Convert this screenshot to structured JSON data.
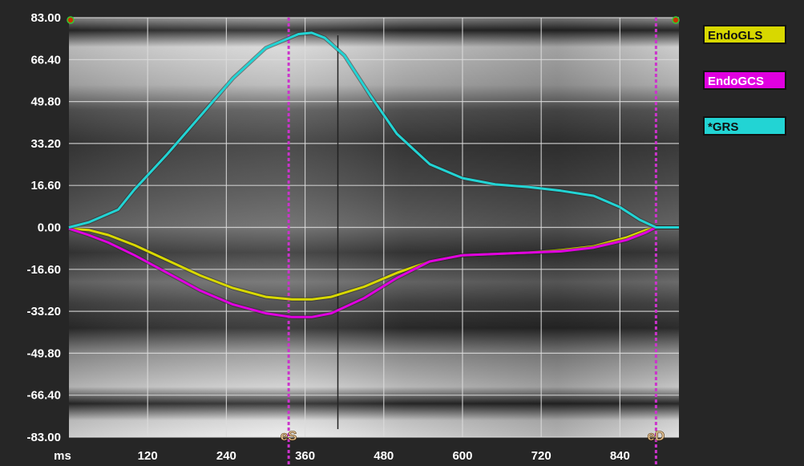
{
  "chart_data": {
    "type": "line",
    "xlabel": "ms",
    "x_ticks": [
      "120",
      "240",
      "360",
      "480",
      "600",
      "720",
      "840"
    ],
    "y_ticks": [
      "83.00",
      "66.40",
      "49.80",
      "33.20",
      "16.60",
      "0.00",
      "-16.60",
      "-33.20",
      "-49.80",
      "-66.40",
      "-83.00"
    ],
    "xlim": [
      0,
      930
    ],
    "ylim": [
      -83,
      83
    ],
    "grid": true,
    "legend_position": "right",
    "markers": [
      {
        "label": "eS",
        "x": 335,
        "color": "#cc33cc"
      },
      {
        "label": "eD",
        "x": 895,
        "color": "#cc33cc"
      }
    ],
    "cursor_x": 410,
    "series": [
      {
        "name": "EndoGLS",
        "color": "#d8d800",
        "x": [
          0,
          30,
          60,
          100,
          150,
          200,
          250,
          300,
          340,
          370,
          400,
          450,
          500,
          550,
          600,
          650,
          700,
          750,
          800,
          850,
          880,
          895,
          930
        ],
        "y": [
          -0.5,
          -1,
          -3,
          -7,
          -13,
          -19,
          -24,
          -27.5,
          -28.5,
          -28.5,
          -27.5,
          -23.5,
          -18,
          -13.5,
          -11,
          -10.5,
          -10,
          -9,
          -7.5,
          -4,
          -1,
          0,
          0
        ]
      },
      {
        "name": "EndoGCS",
        "color": "#e000e0",
        "x": [
          0,
          30,
          60,
          100,
          150,
          200,
          250,
          300,
          340,
          370,
          400,
          450,
          500,
          550,
          600,
          650,
          700,
          750,
          800,
          850,
          880,
          895,
          930
        ],
        "y": [
          -0.5,
          -3,
          -6,
          -11,
          -18,
          -25,
          -30.5,
          -34,
          -35.5,
          -35.5,
          -34,
          -28,
          -20,
          -13.5,
          -11,
          -10.5,
          -10,
          -9.5,
          -8,
          -5,
          -2,
          0,
          0
        ]
      },
      {
        "name": "*GRS",
        "color": "#22d4d4",
        "x": [
          0,
          30,
          75,
          100,
          150,
          200,
          250,
          300,
          350,
          370,
          390,
          420,
          460,
          500,
          550,
          600,
          650,
          700,
          750,
          800,
          840,
          870,
          895,
          930
        ],
        "y": [
          0,
          2,
          7,
          15,
          29,
          44,
          59,
          71,
          76.5,
          77,
          75,
          68,
          52,
          37,
          25,
          19.5,
          17,
          16,
          14.5,
          12.5,
          8,
          3,
          0,
          0
        ]
      }
    ]
  }
}
